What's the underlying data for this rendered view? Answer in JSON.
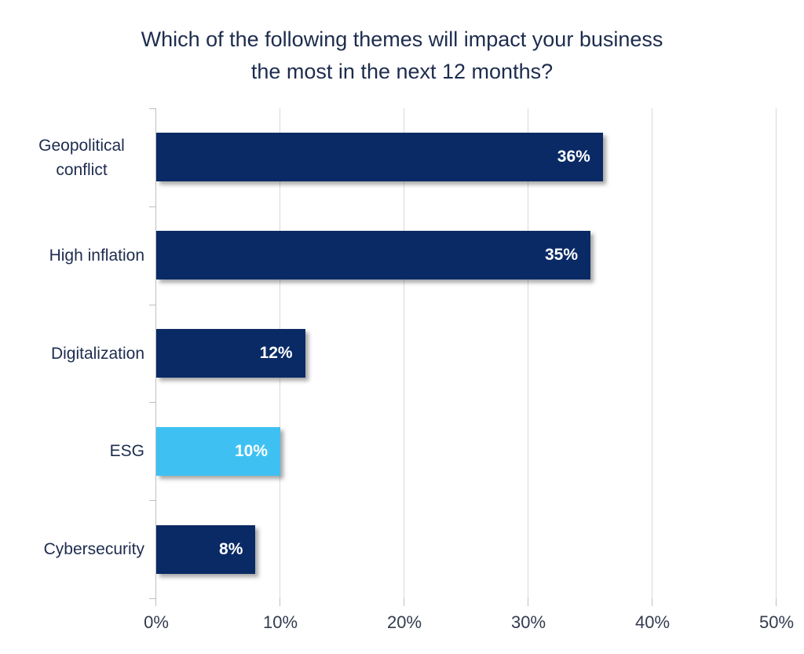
{
  "chart_data": {
    "type": "bar",
    "orientation": "horizontal",
    "title": "Which of the following themes will impact your business the most in the next 12 months?",
    "title_lines": [
      "Which of the following themes will impact your business",
      "the most in the next 12 months?"
    ],
    "categories": [
      "Geopolitical conflict",
      "High inflation",
      "Digitalization",
      "ESG",
      "Cybersecurity"
    ],
    "values": [
      36,
      35,
      12,
      10,
      8
    ],
    "value_labels": [
      "36%",
      "35%",
      "12%",
      "10%",
      "8%"
    ],
    "bar_colors": [
      "#0a2a66",
      "#0a2a66",
      "#0a2a66",
      "#3ec1f2",
      "#0a2a66"
    ],
    "xlim": [
      0,
      50
    ],
    "x_ticks": [
      0,
      10,
      20,
      30,
      40,
      50
    ],
    "x_tick_labels": [
      "0%",
      "10%",
      "20%",
      "30%",
      "40%",
      "50%"
    ],
    "grid": "vertical-gridlines-at-10pct",
    "legend": "none",
    "colors": {
      "bar_primary": "#0a2a66",
      "bar_highlight": "#3ec1f2",
      "title_text": "#1d2c4e",
      "axis_text": "#333b4e",
      "gridline": "#d9d9d9",
      "axis_line": "#bfbfbf",
      "value_label_text": "#ffffff",
      "background": "#ffffff"
    }
  }
}
